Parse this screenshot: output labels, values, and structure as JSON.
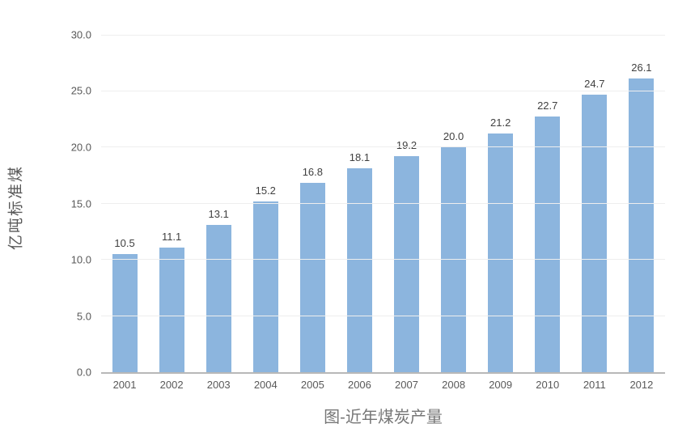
{
  "chart_data": {
    "type": "bar",
    "title": "图-近年煤炭产量",
    "ylabel": "亿吨标准煤",
    "xlabel": "",
    "categories": [
      "2001",
      "2002",
      "2003",
      "2004",
      "2005",
      "2006",
      "2007",
      "2008",
      "2009",
      "2010",
      "2011",
      "2012"
    ],
    "values": [
      10.5,
      11.1,
      13.1,
      15.2,
      16.8,
      18.1,
      19.2,
      20.0,
      21.2,
      22.7,
      24.7,
      26.1
    ],
    "data_labels": [
      "10.5",
      "11.1",
      "13.1",
      "15.2",
      "16.8",
      "18.1",
      "19.2",
      "20.0",
      "21.2",
      "22.7",
      "24.7",
      "26.1"
    ],
    "ylim": [
      0,
      30
    ],
    "ytick_step": 5,
    "ytick_labels": [
      "30.0",
      "25.0",
      "20.0",
      "15.0",
      "10.0",
      "5.0",
      "0.0"
    ],
    "grid": true,
    "legend_position": "none",
    "bar_color": "#8CB5DE",
    "gridline_color": "#EEEEEE",
    "axis_line_color": "#B8B8B8",
    "tick_label_color": "#595959",
    "data_label_color": "#404040",
    "title_color": "#767676"
  }
}
